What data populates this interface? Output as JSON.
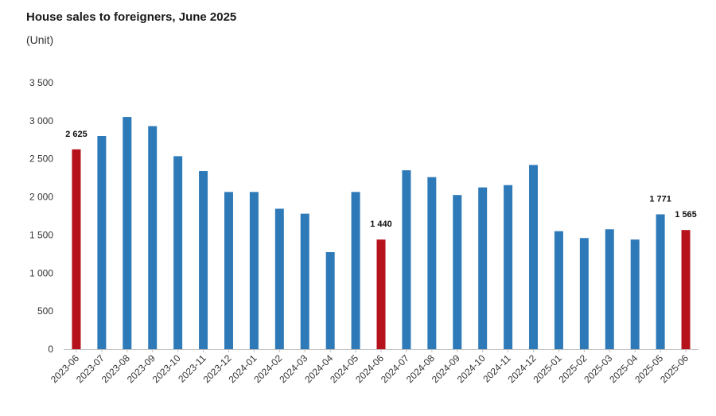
{
  "chart_data": {
    "type": "bar",
    "title": "House sales to foreigners, June 2025",
    "subtitle": "(Unit)",
    "xlabel": "",
    "ylabel": "",
    "ylim": [
      0,
      3500
    ],
    "yticks": [
      0,
      500,
      1000,
      1500,
      2000,
      2500,
      3000,
      3500
    ],
    "ytick_labels": [
      "0",
      "500",
      "1 000",
      "1 500",
      "2 000",
      "2 500",
      "3 000",
      "3 500"
    ],
    "grid": false,
    "legend": "none",
    "categories": [
      "2023-06",
      "2023-07",
      "2023-08",
      "2023-09",
      "2023-10",
      "2023-11",
      "2023-12",
      "2024-01",
      "2024-02",
      "2024-03",
      "2024-04",
      "2024-05",
      "2024-06",
      "2024-07",
      "2024-08",
      "2024-09",
      "2024-10",
      "2024-11",
      "2024-12",
      "2025-01",
      "2025-02",
      "2025-03",
      "2025-04",
      "2025-05",
      "2025-06"
    ],
    "values": [
      2625,
      2800,
      3050,
      2930,
      2535,
      2340,
      2065,
      2065,
      1845,
      1780,
      1275,
      2065,
      1440,
      2350,
      2260,
      2025,
      2125,
      2155,
      2420,
      1550,
      1460,
      1575,
      1440,
      1771,
      1565
    ],
    "highlighted": [
      0,
      12,
      24
    ],
    "data_labels": [
      {
        "index": 0,
        "text": "2 625"
      },
      {
        "index": 12,
        "text": "1 440"
      },
      {
        "index": 23,
        "text": "1 771"
      },
      {
        "index": 24,
        "text": "1 565"
      }
    ],
    "colors": {
      "bar": "#2e7ab8",
      "highlight": "#b5121b",
      "axis": "#bfbfbf"
    }
  }
}
